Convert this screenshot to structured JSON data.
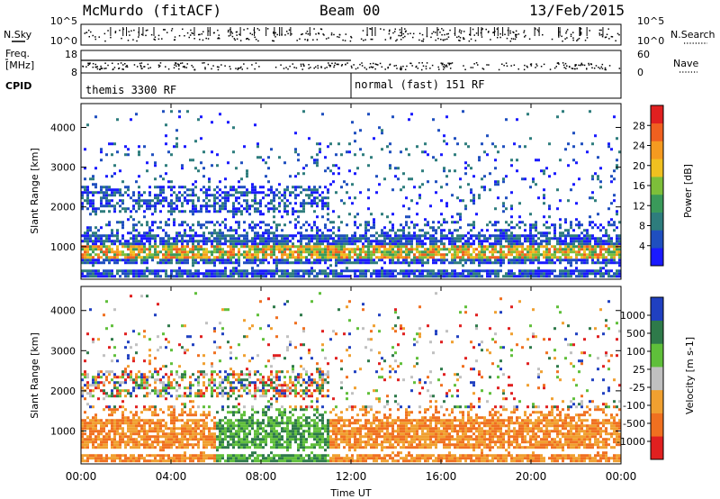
{
  "header": {
    "station": "McMurdo (fitACF)",
    "beam": "Beam 00",
    "date": "13/Feb/2015"
  },
  "summary": {
    "nsky_label": "N.Sky",
    "freq_label_1": "Freq.",
    "freq_label_2": "[MHz]",
    "cpid_label": "CPID",
    "nsearch_label": "N.Search",
    "nave_label": "Nave",
    "nsky_ticks": [
      "10^5",
      "10^0"
    ],
    "nsearch_ticks": [
      "10^5",
      "10^0"
    ],
    "freq_ticks": [
      "18",
      "8"
    ],
    "nave_ticks": [
      "60",
      "0"
    ],
    "cpid_segments": [
      {
        "label": "themis 3300 RF",
        "start_hour": 0
      },
      {
        "label": "normal (fast) 151 RF",
        "start_hour": 12
      }
    ]
  },
  "chart_data": [
    {
      "type": "heatmap",
      "quantity": "Power",
      "ylabel": "Slant Range [km]",
      "yticks": [
        1000,
        2000,
        3000,
        4000
      ],
      "ylim": [
        180,
        4600
      ],
      "xlim_hours": [
        0,
        24
      ],
      "colorbar_label": "Power [dB]",
      "colorbar_ticks": [
        4,
        8,
        12,
        16,
        20,
        24,
        28
      ],
      "colorbar_range": [
        0,
        30
      ],
      "colors": [
        "#1a1aff",
        "#1f4fbf",
        "#2e7d7d",
        "#3a9a5a",
        "#7dbf3a",
        "#f0c020",
        "#f59a20",
        "#f06020",
        "#e02020"
      ],
      "structure": [
        {
          "band": "near",
          "range_km": [
            250,
            350
          ],
          "hours": [
            0,
            24
          ]
        },
        {
          "band": "E/F",
          "range_km": [
            550,
            1300
          ],
          "hours": [
            0,
            24
          ]
        },
        {
          "band": "far",
          "range_km": [
            1800,
            2600
          ],
          "hours": [
            0,
            11
          ]
        }
      ]
    },
    {
      "type": "heatmap",
      "quantity": "Velocity",
      "ylabel": "Slant Range [km]",
      "yticks": [
        1000,
        2000,
        3000,
        4000
      ],
      "ylim": [
        180,
        4600
      ],
      "xlim_hours": [
        0,
        24
      ],
      "colorbar_label": "Velocity [m s-1]",
      "colorbar_ticks": [
        1000,
        500,
        100,
        25,
        -25,
        -100,
        -500,
        -1000
      ],
      "colors": [
        "#2040c0",
        "#2e7a4a",
        "#5fbf3a",
        "#c0c0c0",
        "#f0a030",
        "#f07020",
        "#e02020"
      ]
    }
  ],
  "xaxis": {
    "label": "Time UT",
    "ticks": [
      "00:00",
      "04:00",
      "08:00",
      "12:00",
      "16:00",
      "20:00",
      "00:00"
    ]
  }
}
